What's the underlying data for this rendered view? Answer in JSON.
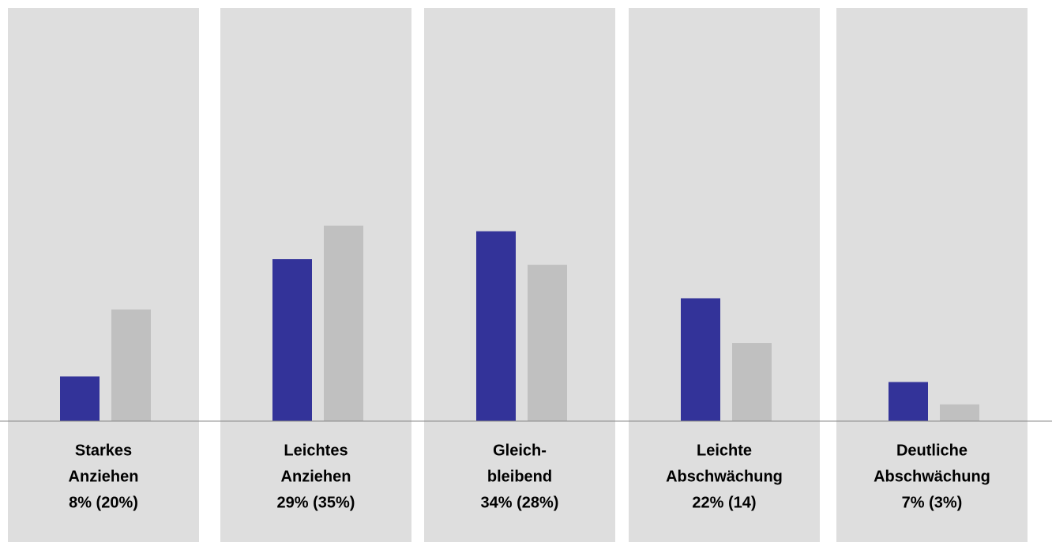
{
  "chart_data": {
    "type": "bar",
    "categories": [
      [
        "Starkes",
        "Anziehen"
      ],
      [
        "Leichtes",
        "Anziehen"
      ],
      [
        "Gleich-",
        "bleibend"
      ],
      [
        "Leichte",
        "Abschwächung"
      ],
      [
        "Deutliche",
        "Abschwächung"
      ]
    ],
    "value_labels": [
      "8% (20%)",
      "29% (35%)",
      "34% (28%)",
      "22% (14)",
      "7% (3%)"
    ],
    "series": [
      {
        "color": "#333399",
        "values": [
          8,
          29,
          34,
          22,
          7
        ]
      },
      {
        "color": "#c0c0c0",
        "values": [
          20,
          35,
          28,
          14,
          3
        ]
      }
    ],
    "ylim": [
      0,
      74
    ]
  }
}
